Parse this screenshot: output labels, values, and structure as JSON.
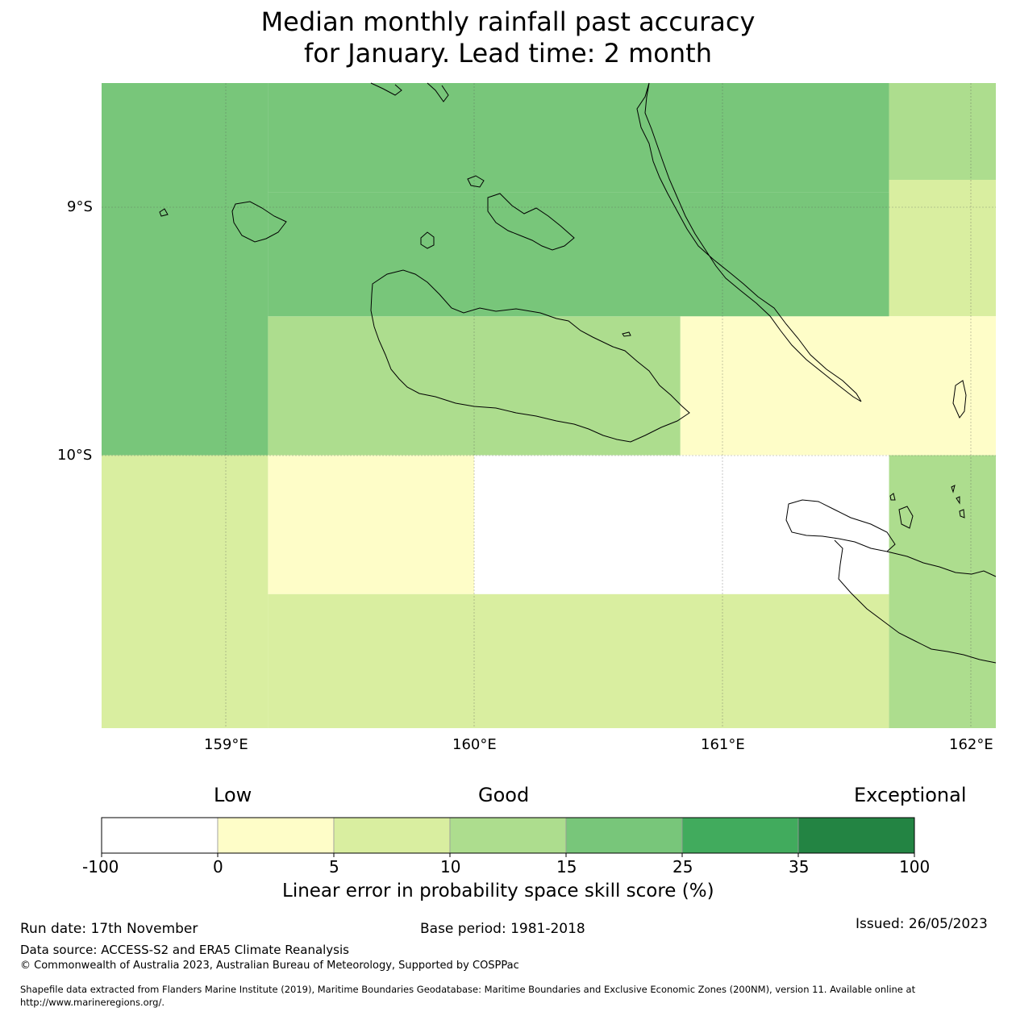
{
  "title": {
    "line1": "Median monthly rainfall past accuracy",
    "line2": "for January. Lead time: 2 month"
  },
  "map": {
    "lat_labels": [
      "9°S",
      "10°S"
    ],
    "lon_labels": [
      "159°E",
      "160°E",
      "161°E",
      "162°E"
    ],
    "extent": {
      "lon_min": 158.5,
      "lon_max": 162.1,
      "lat_north": -8.5,
      "lat_south": -11.1
    },
    "grid_cells": [
      {
        "lon0": 158.5,
        "lon1": 159.17,
        "lat0": -8.5,
        "lat1": -10.0,
        "class": 4
      },
      {
        "lon0": 159.17,
        "lon1": 161.67,
        "lat0": -8.5,
        "lat1": -8.94,
        "class": 4
      },
      {
        "lon0": 161.67,
        "lon1": 162.1,
        "lat0": -8.5,
        "lat1": -8.89,
        "class": 3
      },
      {
        "lon0": 161.67,
        "lon1": 162.1,
        "lat0": -8.89,
        "lat1": -9.44,
        "class": 2
      },
      {
        "lon0": 159.17,
        "lon1": 160.83,
        "lat0": -9.44,
        "lat1": -10.0,
        "class": 3
      },
      {
        "lon0": 160.83,
        "lon1": 162.1,
        "lat0": -9.44,
        "lat1": -10.0,
        "class": 1
      },
      {
        "lon0": 158.5,
        "lon1": 159.17,
        "lat0": -10.0,
        "lat1": -11.1,
        "class": 2
      },
      {
        "lon0": 159.17,
        "lon1": 160.0,
        "lat0": -10.0,
        "lat1": -10.56,
        "class": 1
      },
      {
        "lon0": 160.0,
        "lon1": 161.67,
        "lat0": -10.0,
        "lat1": -10.56,
        "class": 0
      },
      {
        "lon0": 159.17,
        "lon1": 161.67,
        "lat0": -10.56,
        "lat1": -11.1,
        "class": 2
      },
      {
        "lon0": 161.67,
        "lon1": 162.1,
        "lat0": -10.0,
        "lat1": -11.1,
        "class": 3
      },
      {
        "lon0": 159.17,
        "lon1": 161.67,
        "lat0": -8.94,
        "lat1": -9.44,
        "class": 4
      }
    ]
  },
  "legend": {
    "category_low": "Low",
    "category_good": "Good",
    "category_exceptional": "Exceptional",
    "ticks": [
      "-100",
      "0",
      "5",
      "10",
      "15",
      "25",
      "35",
      "100"
    ],
    "colors": [
      "#ffffff",
      "#fefdc8",
      "#d9eea0",
      "#addd8e",
      "#78c67a",
      "#41ab5d",
      "#238443"
    ],
    "label": "Linear error in probability space skill score (%)"
  },
  "footer": {
    "run_date": "Run date: 17th November",
    "base_period": "Base period: 1981-2018",
    "issued": "Issued: 26/05/2023",
    "data_source": "Data source: ACCESS-S2 and ERA5 Climate Reanalysis",
    "copyright": "© Commonwealth of Australia 2023, Australian Bureau of Meteorology, Supported by COSPPac",
    "shapefile_line1": "Shapefile data extracted from Flanders Marine Institute (2019), Maritime Boundaries Geodatabase: Maritime Boundaries and Exclusive Economic Zones (200NM), version 11. Available online at",
    "shapefile_line2": "http://www.marineregions.org/."
  }
}
